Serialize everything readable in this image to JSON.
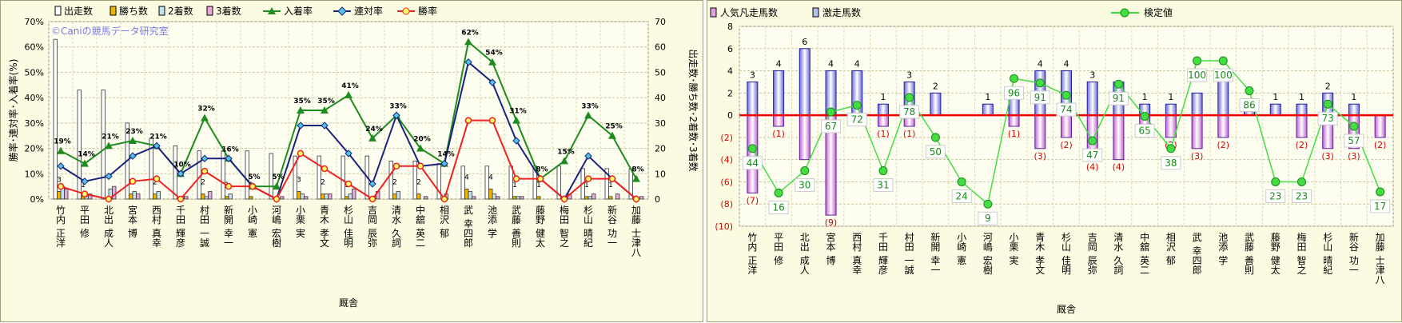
{
  "left_chart": {
    "watermark": "©Caniの競馬データ研究室",
    "ylabel_left": "勝率･連対率･入着率(%)",
    "ylabel_right": "出走数･勝ち数･2着数･3着数",
    "xlabel": "厩舎",
    "legend": [
      "出走数",
      "勝ち数",
      "2着数",
      "3着数",
      "入着率",
      "連対率",
      "勝率"
    ]
  },
  "right_chart": {
    "xlabel": "厩舎",
    "legend": [
      "人気凡走馬数",
      "激走馬数",
      "検定値"
    ]
  },
  "chart_data": [
    {
      "type": "bar",
      "title": "",
      "xlabel": "厩舎",
      "ylabel": "勝率･連対率･入着率(%)",
      "y2label": "出走数･勝ち数･2着数･3着数",
      "ylim": [
        0,
        70
      ],
      "y2lim": [
        0,
        70
      ],
      "grid": true,
      "legend_position": "top",
      "categories": [
        "竹内 正洋",
        "平田 修",
        "北出 成人",
        "宮本 博",
        "西村 真幸",
        "千田 輝彦",
        "村田 一誠",
        "新開 幸一",
        "小崎 憲",
        "河嶋 宏樹",
        "小栗 実",
        "青木 孝文",
        "杉山 佳明",
        "吉岡 辰弥",
        "清水 久詞",
        "中舘 英二",
        "相沢 郁",
        "武 幸四郎",
        "池添 学",
        "武藤 善則",
        "藤野 健太",
        "梅田 智之",
        "杉山 晴紀",
        "新谷 功一",
        "加藤 士津八"
      ],
      "series": [
        {
          "name": "出走数",
          "axis": "right",
          "color": "#ffffff",
          "values": [
            63,
            43,
            43,
            30,
            24,
            21,
            19,
            19,
            19,
            18,
            17,
            17,
            17,
            17,
            15,
            15,
            14,
            13,
            13,
            13,
            13,
            13,
            12,
            12,
            12
          ]
        },
        {
          "name": "勝ち数",
          "axis": "right",
          "color": "#f0b400",
          "values": [
            3,
            1,
            0,
            2,
            2,
            0,
            2,
            1,
            1,
            0,
            3,
            2,
            1,
            0,
            2,
            2,
            0,
            4,
            4,
            1,
            1,
            0,
            1,
            1,
            0
          ]
        },
        {
          "name": "2着数",
          "axis": "right",
          "color": "#bfe4f0",
          "values": [
            5,
            1,
            4,
            3,
            3,
            1,
            1,
            2,
            0,
            0,
            2,
            2,
            2,
            1,
            3,
            0,
            2,
            3,
            2,
            1,
            0,
            0,
            1,
            0,
            0
          ]
        },
        {
          "name": "3着数",
          "axis": "right",
          "color": "#e8a8dc",
          "values": [
            4,
            2,
            5,
            2,
            0,
            1,
            3,
            0,
            0,
            1,
            1,
            2,
            4,
            3,
            0,
            1,
            0,
            1,
            1,
            1,
            0,
            2,
            2,
            2,
            1
          ]
        },
        {
          "name": "入着率",
          "axis": "left",
          "type": "line",
          "color": "#1e8c1e",
          "values": [
            19,
            14,
            21,
            23,
            21,
            10,
            32,
            16,
            5,
            5,
            35,
            35,
            41,
            24,
            33,
            20,
            14,
            62,
            54,
            31,
            8,
            15,
            33,
            25,
            8
          ]
        },
        {
          "name": "連対率",
          "axis": "left",
          "type": "line",
          "color": "#1a237e",
          "values": [
            13,
            7,
            9,
            17,
            21,
            10,
            16,
            16,
            5,
            0,
            29,
            29,
            18,
            6,
            33,
            13,
            14,
            54,
            46,
            23,
            8,
            0,
            17,
            8,
            0
          ]
        },
        {
          "name": "勝率",
          "axis": "left",
          "type": "line",
          "color": "#ee2222",
          "values": [
            5,
            2,
            0,
            7,
            8,
            0,
            11,
            5,
            5,
            0,
            18,
            12,
            6,
            0,
            13,
            13,
            0,
            31,
            31,
            8,
            8,
            0,
            8,
            8,
            0
          ]
        }
      ],
      "point_labels": {
        "入着率": [
          "19%",
          "14%",
          "21%",
          "23%",
          "21%",
          "10%",
          "32%",
          "16%",
          "5%",
          "5%",
          "35%",
          "35%",
          "41%",
          "24%",
          "33%",
          "20%",
          "14%",
          "62%",
          "54%",
          "31%",
          "8%",
          "15%",
          "33%",
          "25%",
          "8%"
        ]
      },
      "bar_labels": {
        "勝ち数": [
          "3",
          "1",
          "",
          "2",
          "2",
          "",
          "2",
          "1",
          "1",
          "",
          "3",
          "2",
          "1",
          "",
          "2",
          "2",
          "",
          "4",
          "4",
          "1",
          "1",
          "",
          "1",
          "1",
          ""
        ]
      }
    },
    {
      "type": "bar",
      "title": "",
      "xlabel": "厩舎",
      "ylabel": "",
      "ylim": [
        -10,
        8
      ],
      "grid": true,
      "legend_position": "top",
      "categories": [
        "竹内 正洋",
        "平田 修",
        "北出 成人",
        "宮本 博",
        "西村 真幸",
        "千田 輝彦",
        "村田 一誠",
        "新開 幸一",
        "小崎 憲",
        "河嶋 宏樹",
        "小栗 実",
        "青木 孝文",
        "杉山 佳明",
        "吉岡 辰弥",
        "清水 久詞",
        "中舘 英二",
        "相沢 郁",
        "武 幸四郎",
        "池添 学",
        "武藤 善則",
        "藤野 健太",
        "梅田 智之",
        "杉山 晴紀",
        "新谷 功一",
        "加藤 士津八"
      ],
      "series": [
        {
          "name": "人気凡走馬数",
          "color": "#e0a0e8",
          "values": [
            -7,
            -1,
            -4,
            -9,
            0,
            -1,
            -1,
            0,
            0,
            0,
            -1,
            -3,
            -2,
            -4,
            -4,
            -1,
            -2,
            -3,
            -2,
            0,
            0,
            -2,
            -3,
            -3,
            -2
          ]
        },
        {
          "name": "激走馬数",
          "color": "#b8c0f0",
          "values": [
            3,
            4,
            6,
            4,
            4,
            1,
            3,
            2,
            0,
            1,
            2,
            4,
            4,
            3,
            3,
            1,
            1,
            2,
            4,
            1,
            1,
            1,
            2,
            1,
            0
          ]
        },
        {
          "name": "検定値",
          "type": "line",
          "color": "#44dd44",
          "values": [
            44,
            16,
            30,
            67,
            72,
            31,
            78,
            50,
            24,
            9,
            96,
            91,
            74,
            47,
            91,
            65,
            38,
            100,
            100,
            86,
            23,
            23,
            73,
            57,
            17
          ]
        }
      ],
      "neg_labels": [
        "(7)",
        "(1)",
        "",
        "(9)",
        "",
        "(1)",
        "(1)",
        "",
        "",
        "",
        "(1)",
        "(3)",
        "(2)",
        "(4)",
        "(4)",
        "(1)",
        "(2)",
        "(3)",
        "(2)",
        "",
        "",
        "(2)",
        "(3)",
        "(3)",
        "(2)"
      ],
      "pos_labels": [
        "3",
        "4",
        "6",
        "4",
        "4",
        "1",
        "3",
        "2",
        "",
        "1",
        "",
        "4",
        "4",
        "3",
        "",
        "1",
        "1",
        "",
        "",
        "",
        "1",
        "1",
        "2",
        "1",
        ""
      ],
      "line_y_positions": [
        -3,
        -7,
        -5,
        0.3,
        0.9,
        -5,
        1.6,
        -2,
        -6,
        -8,
        3.3,
        2.9,
        1.8,
        -2.3,
        2.8,
        -0.1,
        -3,
        4.9,
        4.9,
        2.2,
        -6,
        -6,
        1,
        -1,
        -6.9
      ]
    }
  ]
}
